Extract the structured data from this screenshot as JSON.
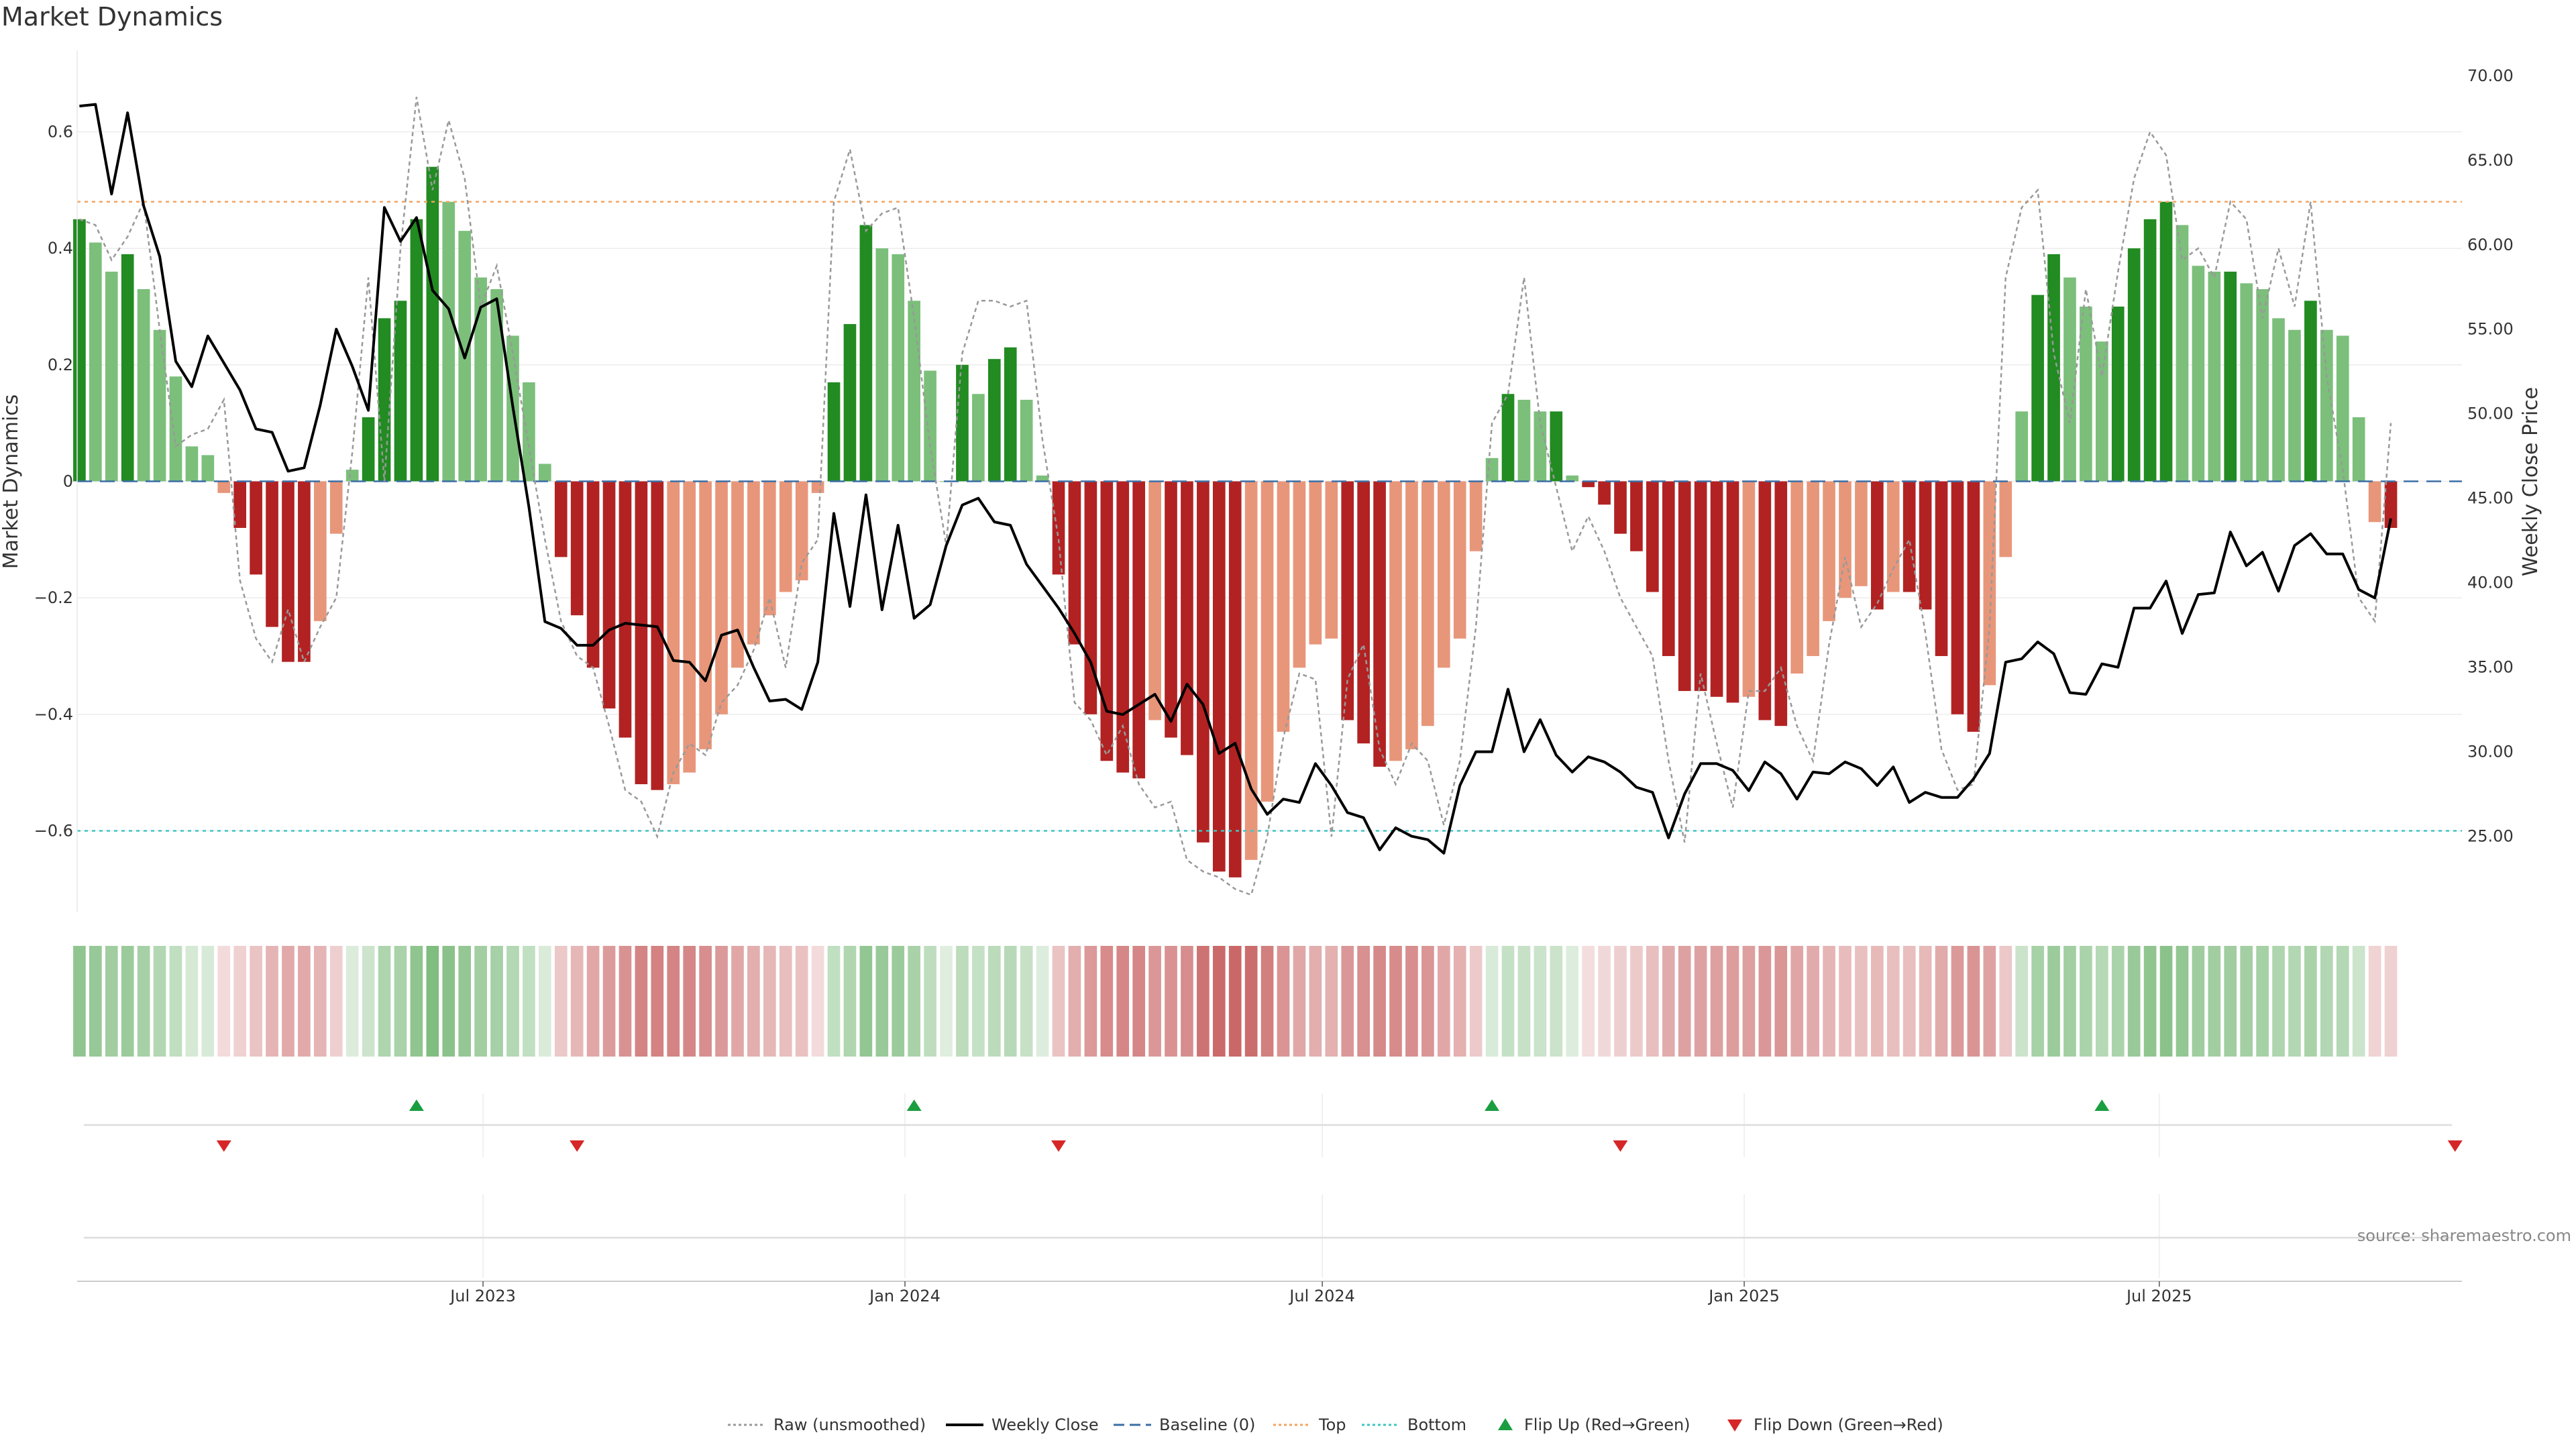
{
  "colors": {
    "strong_green": "#228b22",
    "light_green": "#7bbf7b",
    "strong_red": "#b22222",
    "light_red": "#e8967a",
    "close_line": "#000000",
    "raw_line": "#999999",
    "baseline": "#3b6ea5",
    "top_line": "#f4a460",
    "bottom_line": "#40c4c4",
    "flip_up": "#1a9e3f",
    "flip_down": "#d62728"
  },
  "chart_data": {
    "type": "bar",
    "title": "Market Dynamics",
    "ylabel": "Market Dynamics",
    "y2label": "Weekly Close Price",
    "ylim": [
      -0.74,
      0.74
    ],
    "y2lim": [
      20.5,
      71.5
    ],
    "yticks": [
      -0.6,
      -0.4,
      -0.2,
      0,
      0.2,
      0.4,
      0.6
    ],
    "yticklabels": [
      "−0.6",
      "−0.4",
      "−0.2",
      "0",
      "0.2",
      "0.4",
      "0.6"
    ],
    "y2ticks": [
      25,
      30,
      35,
      40,
      45,
      50,
      55,
      60,
      65,
      70
    ],
    "y2ticklabels": [
      "25.00",
      "30.00",
      "35.00",
      "40.00",
      "45.00",
      "50.00",
      "55.00",
      "60.00",
      "65.00",
      "70.00"
    ],
    "x_dates": [
      "2023-01-06",
      "2023-01-13",
      "2023-01-20",
      "2023-01-27",
      "2023-02-03",
      "2023-02-10",
      "2023-02-17",
      "2023-02-24",
      "2023-03-03",
      "2023-03-10",
      "2023-03-17",
      "2023-03-24",
      "2023-03-31",
      "2023-04-07",
      "2023-04-14",
      "2023-04-21",
      "2023-04-28",
      "2023-05-05",
      "2023-05-12",
      "2023-05-19",
      "2023-05-26",
      "2023-06-02",
      "2023-06-09",
      "2023-06-16",
      "2023-06-23",
      "2023-06-30",
      "2023-07-07",
      "2023-07-14",
      "2023-07-21",
      "2023-07-28",
      "2023-08-04",
      "2023-08-11",
      "2023-08-18",
      "2023-08-25",
      "2023-09-01",
      "2023-09-08",
      "2023-09-15",
      "2023-09-22",
      "2023-09-29",
      "2023-10-06",
      "2023-10-13",
      "2023-10-20",
      "2023-10-27",
      "2023-11-03",
      "2023-11-10",
      "2023-11-17",
      "2023-11-24",
      "2023-12-01",
      "2023-12-08",
      "2023-12-15",
      "2023-12-22",
      "2023-12-29",
      "2024-01-05",
      "2024-01-12",
      "2024-01-19",
      "2024-01-26",
      "2024-02-02",
      "2024-02-09",
      "2024-02-16",
      "2024-02-23",
      "2024-03-01",
      "2024-03-08",
      "2024-03-15",
      "2024-03-22",
      "2024-03-29",
      "2024-04-05",
      "2024-04-12",
      "2024-04-19",
      "2024-04-26",
      "2024-05-03",
      "2024-05-10",
      "2024-05-17",
      "2024-05-24",
      "2024-05-31",
      "2024-06-07",
      "2024-06-14",
      "2024-06-21",
      "2024-06-28",
      "2024-07-05",
      "2024-07-12",
      "2024-07-19",
      "2024-07-26",
      "2024-08-02",
      "2024-08-09",
      "2024-08-16",
      "2024-08-23",
      "2024-08-30",
      "2024-09-06",
      "2024-09-13",
      "2024-09-20",
      "2024-09-27",
      "2024-10-04",
      "2024-10-11",
      "2024-10-18",
      "2024-10-25",
      "2024-11-01",
      "2024-11-08",
      "2024-11-15",
      "2024-11-22",
      "2024-11-29",
      "2024-12-06",
      "2024-12-13",
      "2024-12-20",
      "2024-12-27",
      "2025-01-03",
      "2025-01-10",
      "2025-01-17",
      "2025-01-24",
      "2025-01-31",
      "2025-02-07",
      "2025-02-14",
      "2025-02-21",
      "2025-02-28",
      "2025-03-07",
      "2025-03-14",
      "2025-03-21",
      "2025-03-28",
      "2025-04-04",
      "2025-04-11",
      "2025-04-18",
      "2025-04-25",
      "2025-05-02",
      "2025-05-09",
      "2025-05-16",
      "2025-05-23",
      "2025-05-30",
      "2025-06-06",
      "2025-06-13",
      "2025-06-20",
      "2025-06-27",
      "2025-07-04",
      "2025-07-11",
      "2025-07-18",
      "2025-07-25",
      "2025-08-01",
      "2025-08-08",
      "2025-08-15",
      "2025-08-22",
      "2025-08-29",
      "2025-09-05",
      "2025-09-12",
      "2025-09-19",
      "2025-09-26",
      "2025-10-03",
      "2025-10-10",
      "2025-10-17",
      "2025-10-24",
      "2025-10-31",
      "2025-11-07"
    ],
    "x_axis": {
      "start": "2023-01-05",
      "end": "2025-11-10"
    },
    "xticks": [
      "2023-07-01",
      "2024-01-01",
      "2024-07-01",
      "2025-01-01",
      "2025-07-01"
    ],
    "xticklabels": [
      "Jul 2023",
      "Jan 2024",
      "Jul 2024",
      "Jan 2025",
      "Jul 2025"
    ],
    "series": [
      {
        "name": "Market Dynamics",
        "kind": "bar",
        "values": [
          0.45,
          0.41,
          0.36,
          0.39,
          0.33,
          0.26,
          0.18,
          0.06,
          0.045,
          -0.02,
          -0.08,
          -0.16,
          -0.25,
          -0.31,
          -0.31,
          -0.24,
          -0.09,
          0.02,
          0.11,
          0.28,
          0.31,
          0.45,
          0.54,
          0.48,
          0.43,
          0.35,
          0.33,
          0.25,
          0.17,
          0.03,
          -0.13,
          -0.23,
          -0.32,
          -0.39,
          -0.44,
          -0.52,
          -0.53,
          -0.52,
          -0.5,
          -0.46,
          -0.4,
          -0.32,
          -0.28,
          -0.23,
          -0.19,
          -0.17,
          -0.02,
          0.17,
          0.27,
          0.44,
          0.4,
          0.39,
          0.31,
          0.19,
          0.0,
          0.2,
          0.15,
          0.21,
          0.23,
          0.14,
          0.01,
          -0.16,
          -0.28,
          -0.4,
          -0.48,
          -0.5,
          -0.51,
          -0.41,
          -0.44,
          -0.47,
          -0.62,
          -0.67,
          -0.68,
          -0.65,
          -0.55,
          -0.43,
          -0.32,
          -0.28,
          -0.27,
          -0.41,
          -0.45,
          -0.49,
          -0.48,
          -0.46,
          -0.42,
          -0.32,
          -0.27,
          -0.12,
          0.04,
          0.15,
          0.14,
          0.12,
          0.12,
          0.01,
          -0.01,
          -0.04,
          -0.09,
          -0.12,
          -0.19,
          -0.3,
          -0.36,
          -0.36,
          -0.37,
          -0.38,
          -0.37,
          -0.41,
          -0.42,
          -0.33,
          -0.3,
          -0.24,
          -0.2,
          -0.18,
          -0.22,
          -0.19,
          -0.19,
          -0.22,
          -0.3,
          -0.4,
          -0.43,
          -0.35,
          -0.13,
          0.12,
          0.32,
          0.39,
          0.35,
          0.3,
          0.24,
          0.3,
          0.4,
          0.45,
          0.48,
          0.44,
          0.37,
          0.36,
          0.36,
          0.34,
          0.33,
          0.28,
          0.26,
          0.31,
          0.26,
          0.25,
          0.11,
          -0.07,
          -0.08
        ]
      },
      {
        "name": "Raw (unsmoothed)",
        "kind": "line",
        "values": [
          0.45,
          0.44,
          0.38,
          0.42,
          0.48,
          0.26,
          0.06,
          0.08,
          0.09,
          0.14,
          -0.17,
          -0.27,
          -0.31,
          -0.22,
          -0.31,
          -0.25,
          -0.2,
          0.05,
          0.35,
          0.0,
          0.4,
          0.66,
          0.5,
          0.62,
          0.52,
          0.3,
          0.37,
          0.22,
          0.06,
          -0.1,
          -0.24,
          -0.3,
          -0.32,
          -0.42,
          -0.53,
          -0.55,
          -0.61,
          -0.5,
          -0.45,
          -0.47,
          -0.38,
          -0.35,
          -0.29,
          -0.2,
          -0.32,
          -0.14,
          -0.1,
          0.48,
          0.57,
          0.43,
          0.46,
          0.47,
          0.28,
          0.06,
          -0.11,
          0.22,
          0.31,
          0.31,
          0.3,
          0.31,
          0.07,
          -0.1,
          -0.38,
          -0.41,
          -0.47,
          -0.42,
          -0.52,
          -0.56,
          -0.55,
          -0.65,
          -0.67,
          -0.68,
          -0.7,
          -0.71,
          -0.61,
          -0.44,
          -0.33,
          -0.34,
          -0.61,
          -0.34,
          -0.28,
          -0.46,
          -0.52,
          -0.45,
          -0.48,
          -0.59,
          -0.48,
          -0.25,
          0.1,
          0.15,
          0.35,
          0.1,
          -0.01,
          -0.12,
          -0.06,
          -0.12,
          -0.2,
          -0.25,
          -0.3,
          -0.48,
          -0.62,
          -0.33,
          -0.45,
          -0.56,
          -0.36,
          -0.36,
          -0.32,
          -0.42,
          -0.48,
          -0.28,
          -0.13,
          -0.25,
          -0.21,
          -0.15,
          -0.1,
          -0.26,
          -0.46,
          -0.53,
          -0.52,
          -0.25,
          0.35,
          0.47,
          0.5,
          0.22,
          0.1,
          0.33,
          0.18,
          0.36,
          0.52,
          0.6,
          0.56,
          0.38,
          0.4,
          0.35,
          0.48,
          0.45,
          0.28,
          0.4,
          0.3,
          0.48,
          0.18,
          0.02,
          -0.2,
          -0.24,
          0.1
        ]
      },
      {
        "name": "Weekly Close",
        "kind": "line",
        "axis": "right",
        "values": [
          68.2,
          68.3,
          63.0,
          67.8,
          62.3,
          59.3,
          53.1,
          51.6,
          54.6,
          53.0,
          51.4,
          49.1,
          48.9,
          46.6,
          46.8,
          50.5,
          55.0,
          52.8,
          50.2,
          62.2,
          60.2,
          61.6,
          57.3,
          56.2,
          53.3,
          56.3,
          56.8,
          50.4,
          44.5,
          37.7,
          37.3,
          36.3,
          36.3,
          37.2,
          37.6,
          37.5,
          37.4,
          35.4,
          35.3,
          34.2,
          36.9,
          37.2,
          35.0,
          33.0,
          33.1,
          32.5,
          35.3,
          44.1,
          38.6,
          45.2,
          38.4,
          43.4,
          37.9,
          38.7,
          42.2,
          44.6,
          45.0,
          43.6,
          43.4,
          41.1,
          39.8,
          38.5,
          37.0,
          35.3,
          32.4,
          32.2,
          32.8,
          33.4,
          31.8,
          34.0,
          32.8,
          29.9,
          30.5,
          27.8,
          26.3,
          27.2,
          27.0,
          29.3,
          28.0,
          26.4,
          26.1,
          24.2,
          25.5,
          25.0,
          24.8,
          24.0,
          28.0,
          30.0,
          30.0,
          33.7,
          30.0,
          31.9,
          29.8,
          28.8,
          29.7,
          29.4,
          28.8,
          27.9,
          27.6,
          24.9,
          27.5,
          29.3,
          29.3,
          28.9,
          27.7,
          29.4,
          28.7,
          27.2,
          28.8,
          28.7,
          29.4,
          29.0,
          28.0,
          29.1,
          27.0,
          27.6,
          27.3,
          27.3,
          28.4,
          29.9,
          35.3,
          35.5,
          36.5,
          35.8,
          33.5,
          33.4,
          35.2,
          35.0,
          38.5,
          38.5,
          40.1,
          37.0,
          39.3,
          39.4,
          43.0,
          41.0,
          41.8,
          39.5,
          42.2,
          42.9,
          41.7,
          41.7,
          39.6,
          39.1,
          43.8
        ]
      }
    ],
    "reference_lines": [
      {
        "name": "Baseline (0)",
        "value": 0
      },
      {
        "name": "Top",
        "value": 0.48
      },
      {
        "name": "Bottom",
        "value": -0.6
      }
    ],
    "flips": {
      "up": [
        "2023-06-02",
        "2024-01-05",
        "2024-09-13",
        "2025-06-06"
      ],
      "down": [
        "2023-03-10",
        "2023-08-11",
        "2024-03-08",
        "2024-11-08",
        "2025-11-07"
      ]
    },
    "legend": {
      "position": "bottom-center",
      "entries": [
        "Raw (unsmoothed)",
        "Weekly Close",
        "Baseline (0)",
        "Top",
        "Bottom",
        "Flip Up (Red→Green)",
        "Flip Down (Green→Red)"
      ]
    },
    "grid": true,
    "source": "source: sharemaestro.com"
  }
}
